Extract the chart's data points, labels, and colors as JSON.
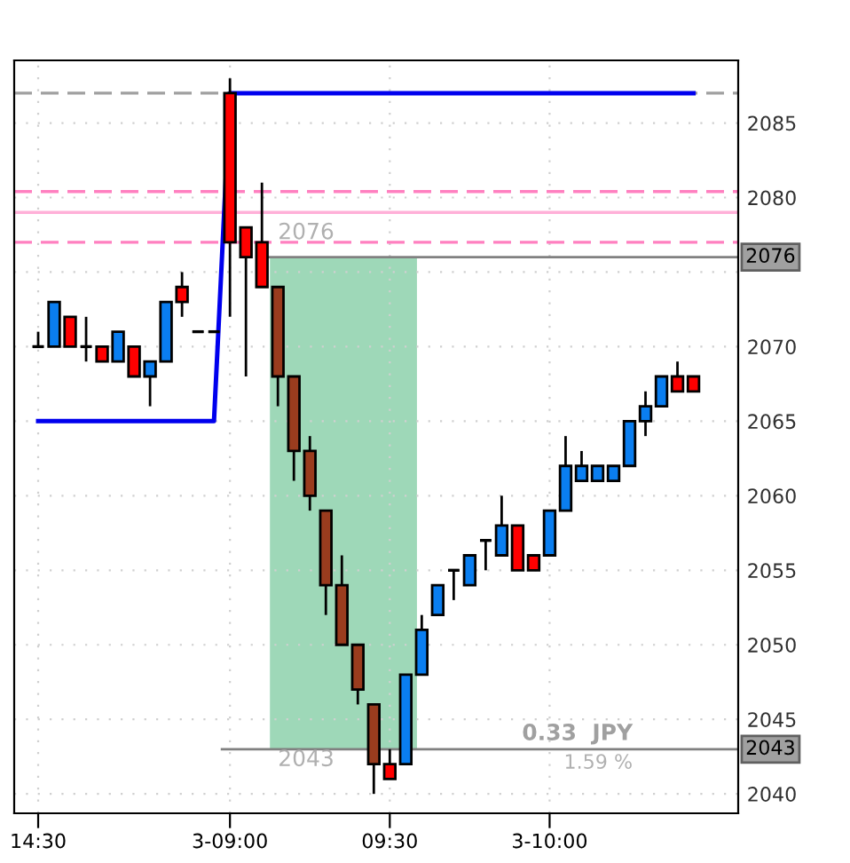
{
  "chart_data": {
    "type": "candlestick",
    "categories": [
      "14:30",
      null,
      null,
      null,
      null,
      null,
      null,
      null,
      null,
      null,
      null,
      null,
      "3-09:00",
      null,
      null,
      null,
      null,
      null,
      null,
      null,
      null,
      null,
      "09:30",
      null,
      null,
      null,
      null,
      null,
      null,
      null,
      null,
      null,
      "3-10:00",
      null,
      null,
      null,
      null,
      null,
      null,
      null,
      null,
      null
    ],
    "ohlc": [
      [
        2070,
        2071,
        2070,
        2070
      ],
      [
        2070,
        2073,
        2070,
        2073
      ],
      [
        2072,
        2072,
        2070,
        2070
      ],
      [
        2070,
        2072,
        2069,
        2070
      ],
      [
        2070,
        2070,
        2069,
        2069
      ],
      [
        2069,
        2071,
        2069,
        2071
      ],
      [
        2070,
        2070,
        2068,
        2068
      ],
      [
        2068,
        2069,
        2066,
        2069
      ],
      [
        2069,
        2073,
        2069,
        2073
      ],
      [
        2074,
        2075,
        2072,
        2073
      ],
      [
        2071,
        2071,
        2071,
        2071
      ],
      [
        2071,
        2071,
        2071,
        2071
      ],
      [
        2087,
        2088,
        2072,
        2077
      ],
      [
        2078,
        2078,
        2068,
        2076
      ],
      [
        2077,
        2081,
        2074,
        2074
      ],
      [
        2074,
        2074,
        2066,
        2068
      ],
      [
        2068,
        2068,
        2061,
        2063
      ],
      [
        2063,
        2064,
        2059,
        2060
      ],
      [
        2059,
        2059,
        2052,
        2054
      ],
      [
        2054,
        2056,
        2050,
        2050
      ],
      [
        2050,
        2050,
        2046,
        2047
      ],
      [
        2046,
        2046,
        2040,
        2042
      ],
      [
        2042,
        2043,
        2041,
        2041
      ],
      [
        2042,
        2048,
        2042,
        2048
      ],
      [
        2048,
        2052,
        2048,
        2051
      ],
      [
        2052,
        2054,
        2052,
        2054
      ],
      [
        2055,
        2055,
        2053,
        2055
      ],
      [
        2054,
        2056,
        2054,
        2056
      ],
      [
        2057,
        2057,
        2055,
        2057
      ],
      [
        2056,
        2060,
        2056,
        2058
      ],
      [
        2058,
        2058,
        2055,
        2055
      ],
      [
        2056,
        2056,
        2055,
        2055
      ],
      [
        2056,
        2059,
        2056,
        2059
      ],
      [
        2059,
        2064,
        2059,
        2062
      ],
      [
        2061,
        2063,
        2061,
        2062
      ],
      [
        2061,
        2062,
        2061,
        2062
      ],
      [
        2061,
        2062,
        2061,
        2062
      ],
      [
        2062,
        2065,
        2062,
        2065
      ],
      [
        2065,
        2067,
        2064,
        2066
      ],
      [
        2066,
        2068,
        2066,
        2068
      ],
      [
        2068,
        2069,
        2067,
        2067
      ],
      [
        2068,
        2068,
        2067,
        2067
      ]
    ],
    "colors": [
      "#000000",
      "#0a7ef0",
      "#ff0000",
      "#000000",
      "#ff0000",
      "#0a7ef0",
      "#ff0000",
      "#0a7ef0",
      "#0a7ef0",
      "#ff0000",
      "#000000",
      "#000000",
      "#ff0000",
      "#ff0000",
      "#ff0000",
      "#9a3c1e",
      "#9a3c1e",
      "#9a3c1e",
      "#9a3c1e",
      "#9a3c1e",
      "#9a3c1e",
      "#9a3c1e",
      "#ff0000",
      "#0a7ef0",
      "#0a7ef0",
      "#0a7ef0",
      "#000000",
      "#0a7ef0",
      "#000000",
      "#0a7ef0",
      "#ff0000",
      "#ff0000",
      "#0a7ef0",
      "#0a7ef0",
      "#0a7ef0",
      "#0a7ef0",
      "#0a7ef0",
      "#0a7ef0",
      "#0a7ef0",
      "#0a7ef0",
      "#ff0000",
      "#ff0000"
    ],
    "series": [
      {
        "type": "line",
        "color": "#0000ee",
        "values": [
          2065,
          2065,
          2065,
          2065,
          2065,
          2065,
          2065,
          2065,
          2065,
          2065,
          2065,
          2065,
          2087,
          2087,
          2087,
          2087,
          2087,
          2087,
          2087,
          2087,
          2087,
          2087,
          2087,
          2087,
          2087,
          2087,
          2087,
          2087,
          2087,
          2087,
          2087,
          2087,
          2087,
          2087,
          2087,
          2087,
          2087,
          2087,
          2087,
          2087,
          2087,
          2087
        ]
      }
    ],
    "ylim": [
      2038.7,
      2089.2
    ],
    "yticks": [
      2040,
      2045,
      2050,
      2055,
      2060,
      2065,
      2070,
      {
        "value": 2075,
        "label": null
      },
      2080,
      2085
    ],
    "ref_lines": [
      {
        "axis": "y",
        "value": 2087,
        "color": "#a0a0a0",
        "line_style": "dashed"
      },
      {
        "axis": "y",
        "value": 2080.4,
        "color": "#ff80c0",
        "line_style": "dashed"
      },
      {
        "axis": "y",
        "value": 2079,
        "color": "#ffb0d8",
        "line_style": "solid"
      },
      {
        "axis": "y",
        "value": 2077,
        "color": "#ff80c0",
        "line_style": "dashed"
      },
      {
        "axis": "y",
        "value": 2076,
        "color": "#808080",
        "line_style": "solid",
        "label": "2076"
      },
      {
        "axis": "y",
        "value": 2043,
        "color": "#808080",
        "line_style": "solid",
        "label": "2043"
      }
    ],
    "bands": [
      {
        "axis": "y",
        "from": 2043,
        "to": 2076,
        "color": "#9ed8b8"
      }
    ],
    "annotations": [
      "2076",
      "2043",
      "0.33  JPY",
      "1.59 %"
    ],
    "grid": true
  }
}
